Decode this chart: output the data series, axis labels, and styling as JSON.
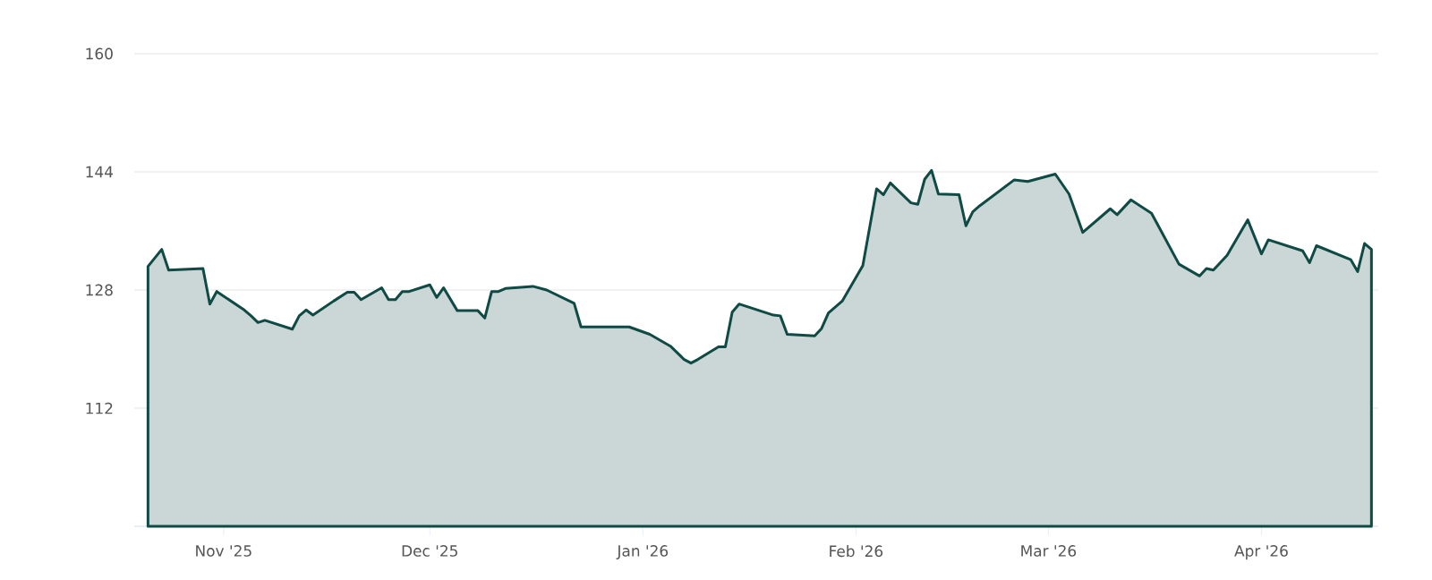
{
  "chart_data": {
    "type": "area",
    "x": [
      "2025-10-21",
      "2025-10-23",
      "2025-10-24",
      "2025-10-29",
      "2025-10-30",
      "2025-10-31",
      "2025-11-04",
      "2025-11-05",
      "2025-11-06",
      "2025-11-07",
      "2025-11-11",
      "2025-11-12",
      "2025-11-13",
      "2025-11-14",
      "2025-11-17",
      "2025-11-19",
      "2025-11-20",
      "2025-11-21",
      "2025-11-24",
      "2025-11-25",
      "2025-11-26",
      "2025-11-27",
      "2025-11-28",
      "2025-12-01",
      "2025-12-02",
      "2025-12-03",
      "2025-12-05",
      "2025-12-08",
      "2025-12-09",
      "2025-12-10",
      "2025-12-11",
      "2025-12-12",
      "2025-12-16",
      "2025-12-18",
      "2025-12-22",
      "2025-12-23",
      "2025-12-30",
      "2026-01-02",
      "2026-01-05",
      "2026-01-07",
      "2026-01-08",
      "2026-01-09",
      "2026-01-12",
      "2026-01-13",
      "2026-01-14",
      "2026-01-15",
      "2026-01-19",
      "2026-01-20",
      "2026-01-21",
      "2026-01-22",
      "2026-01-26",
      "2026-01-27",
      "2026-01-28",
      "2026-01-30",
      "2026-02-02",
      "2026-02-04",
      "2026-02-05",
      "2026-02-06",
      "2026-02-09",
      "2026-02-10",
      "2026-02-11",
      "2026-02-12",
      "2026-02-13",
      "2026-02-16",
      "2026-02-17",
      "2026-02-18",
      "2026-02-19",
      "2026-02-24",
      "2026-02-26",
      "2026-03-02",
      "2026-03-04",
      "2026-03-06",
      "2026-03-10",
      "2026-03-11",
      "2026-03-13",
      "2026-03-16",
      "2026-03-20",
      "2026-03-23",
      "2026-03-24",
      "2026-03-25",
      "2026-03-27",
      "2026-03-30",
      "2026-04-01",
      "2026-04-02",
      "2026-04-07",
      "2026-04-08",
      "2026-04-09",
      "2026-04-14",
      "2026-04-15",
      "2026-04-16",
      "2026-04-17"
    ],
    "series": [
      {
        "color": "#0f4a45",
        "values": [
          131.2,
          133.5,
          130.7,
          130.9,
          126.1,
          127.8,
          125.3,
          124.5,
          123.6,
          123.9,
          122.7,
          124.5,
          125.3,
          124.6,
          126.5,
          127.7,
          127.7,
          126.7,
          128.3,
          126.7,
          126.7,
          127.8,
          127.8,
          128.7,
          127.0,
          128.3,
          125.2,
          125.2,
          124.2,
          127.8,
          127.8,
          128.2,
          128.5,
          128.0,
          126.2,
          123.0,
          123.0,
          122.0,
          120.4,
          118.6,
          118.1,
          118.6,
          120.3,
          120.3,
          125.0,
          126.1,
          124.9,
          124.6,
          124.5,
          122.0,
          121.8,
          122.8,
          124.9,
          126.5,
          131.3,
          141.7,
          140.9,
          142.5,
          139.8,
          139.6,
          143.0,
          144.2,
          141.0,
          140.9,
          136.7,
          138.6,
          139.4,
          142.9,
          142.7,
          143.7,
          141.0,
          135.8,
          139.0,
          138.2,
          140.2,
          138.4,
          131.5,
          129.9,
          130.9,
          130.7,
          132.7,
          137.5,
          132.9,
          134.8,
          133.3,
          131.7,
          134.0,
          132.1,
          130.5,
          134.3,
          133.5
        ]
      }
    ],
    "xlim": [
      "2025-10-19",
      "2026-04-18"
    ],
    "xticks": [
      {
        "value": "2025-11-01",
        "label": "Nov '25"
      },
      {
        "value": "2025-12-01",
        "label": "Dec '25"
      },
      {
        "value": "2026-01-01",
        "label": "Jan '26"
      },
      {
        "value": "2026-02-01",
        "label": "Feb '26"
      },
      {
        "value": "2026-03-01",
        "label": "Mar '26"
      },
      {
        "value": "2026-04-01",
        "label": "Apr '26"
      }
    ],
    "ylim": [
      96,
      160
    ],
    "yticks": [
      112,
      128,
      144,
      160
    ],
    "grid": "y"
  }
}
